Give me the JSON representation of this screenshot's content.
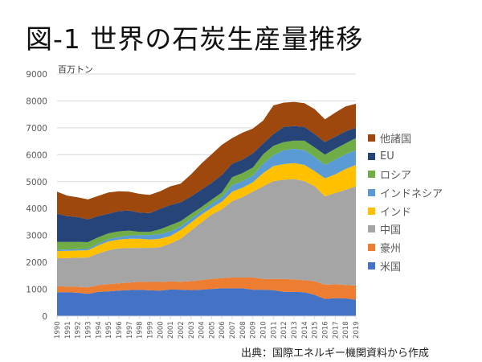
{
  "title": "図-1 世界の石炭生産量推移",
  "unit_label": "百万トン",
  "source": "出典：国際エネルギー機関資料から作成",
  "chart_data": {
    "type": "area",
    "stacked": true,
    "title": "図-1 世界の石炭生産量推移",
    "ylabel": "百万トン",
    "xlabel": "",
    "ylim": [
      0,
      9000
    ],
    "yticks": [
      0,
      1000,
      2000,
      3000,
      4000,
      5000,
      6000,
      7000,
      8000,
      9000
    ],
    "grid": true,
    "legend_position": "right",
    "x": [
      "1990",
      "1991",
      "1992",
      "1993",
      "1994",
      "1995",
      "1996",
      "1997",
      "1998",
      "1999",
      "2000",
      "2001",
      "2002",
      "2003",
      "2004",
      "2005",
      "2006",
      "2007",
      "2008",
      "2009",
      "2010",
      "2011",
      "2012",
      "2013",
      "2014",
      "2015",
      "2016",
      "2017",
      "2018",
      "2019"
    ],
    "series": [
      {
        "name": "米国",
        "color": "#4472C4",
        "values": [
          890,
          890,
          870,
          830,
          900,
          920,
          950,
          970,
          980,
          960,
          950,
          990,
          985,
          970,
          985,
          1010,
          1035,
          1035,
          1035,
          985,
          985,
          965,
          905,
          900,
          890,
          790,
          640,
          670,
          660,
          610
        ]
      },
      {
        "name": "豪州",
        "color": "#ED7D31",
        "values": [
          220,
          210,
          220,
          240,
          250,
          270,
          270,
          280,
          300,
          310,
          320,
          300,
          295,
          330,
          355,
          375,
          375,
          400,
          400,
          450,
          400,
          420,
          480,
          460,
          445,
          510,
          525,
          515,
          500,
          525
        ]
      },
      {
        "name": "中国",
        "color": "#A5A5A5",
        "values": [
          1040,
          1060,
          1080,
          1110,
          1180,
          1260,
          1300,
          1280,
          1260,
          1270,
          1290,
          1410,
          1600,
          1880,
          2140,
          2390,
          2565,
          2840,
          2990,
          3190,
          3440,
          3635,
          3685,
          3735,
          3685,
          3525,
          3290,
          3390,
          3535,
          3690
        ]
      },
      {
        "name": "インド",
        "color": "#FFC000",
        "values": [
          270,
          270,
          270,
          270,
          300,
          330,
          330,
          350,
          340,
          310,
          320,
          280,
          320,
          300,
          295,
          250,
          280,
          350,
          350,
          350,
          495,
          560,
          580,
          595,
          600,
          565,
          665,
          695,
          775,
          795
        ]
      },
      {
        "name": "インドネシア",
        "color": "#5B9BD5",
        "values": [
          50,
          50,
          50,
          50,
          70,
          80,
          90,
          120,
          130,
          160,
          170,
          170,
          130,
          140,
          125,
          145,
          175,
          250,
          245,
          245,
          350,
          405,
          520,
          530,
          550,
          530,
          500,
          550,
          550,
          550
        ]
      },
      {
        "name": "ロシア",
        "color": "#70AD47",
        "values": [
          290,
          280,
          270,
          250,
          230,
          220,
          210,
          180,
          120,
          120,
          180,
          230,
          200,
          180,
          150,
          160,
          170,
          295,
          300,
          300,
          350,
          345,
          300,
          300,
          350,
          350,
          380,
          400,
          400,
          450
        ]
      },
      {
        "name": "EU",
        "color": "#264478",
        "values": [
          1050,
          960,
          920,
          850,
          790,
          730,
          755,
          745,
          720,
          700,
          760,
          750,
          700,
          650,
          650,
          620,
          650,
          500,
          500,
          530,
          400,
          440,
          565,
          545,
          515,
          500,
          470,
          450,
          450,
          380
        ]
      },
      {
        "name": "他諸国",
        "color": "#9E480E",
        "values": [
          815,
          760,
          740,
          740,
          750,
          790,
          740,
          700,
          695,
          675,
          655,
          695,
          695,
          820,
          970,
          1070,
          1120,
          950,
          1000,
          920,
          850,
          1065,
          900,
          900,
          880,
          925,
          845,
          895,
          925,
          895
        ]
      }
    ]
  }
}
